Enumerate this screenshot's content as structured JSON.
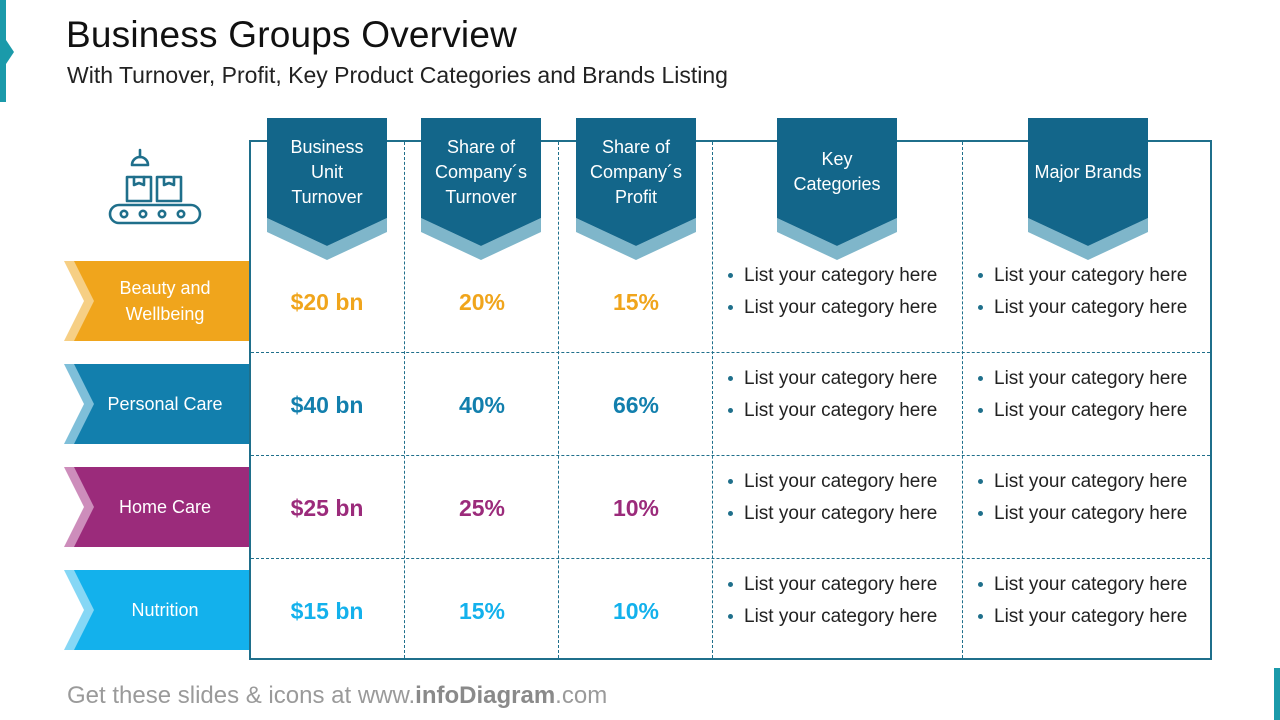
{
  "title": "Business Groups Overview",
  "subtitle": "With Turnover, Profit, Key Product Categories and Brands Listing",
  "icons": {
    "header": "conveyor-boxes-icon"
  },
  "colors": {
    "header_dark": "#13668a",
    "header_light": "#7fb6ca",
    "grid": "#1f6f8b",
    "beauty": "#f0a51c",
    "personal": "#127fad",
    "home": "#9b2b7b",
    "nutrition": "#13b1ec"
  },
  "headers": [
    "Business Unit Turnover",
    "Share of Company´s Turnover",
    "Share of Company´s Profit",
    "Key Categories",
    "Major Brands"
  ],
  "rows": [
    {
      "label": "Beauty and Wellbeing",
      "color": "#f0a51c",
      "light": "#f6cf85",
      "turnover": "$20 bn",
      "share_turnover": "20%",
      "share_profit": "15%",
      "categories": [
        "List your category here",
        "List your category here"
      ],
      "brands": [
        "List your category here",
        "List your category here"
      ]
    },
    {
      "label": "Personal Care",
      "color": "#127fad",
      "light": "#7fbfd9",
      "turnover": "$40 bn",
      "share_turnover": "40%",
      "share_profit": "66%",
      "categories": [
        "List your category here",
        "List your category here"
      ],
      "brands": [
        "List your category here",
        "List your category here"
      ]
    },
    {
      "label": "Home Care",
      "color": "#9b2b7b",
      "light": "#cd8dbb",
      "turnover": "$25 bn",
      "share_turnover": "25%",
      "share_profit": "10%",
      "categories": [
        "List your category here",
        "List your category here"
      ],
      "brands": [
        "List your category here",
        "List your category here"
      ]
    },
    {
      "label": "Nutrition",
      "color": "#13b1ec",
      "light": "#86d7f5",
      "turnover": "$15 bn",
      "share_turnover": "15%",
      "share_profit": "10%",
      "categories": [
        "List your category here",
        "List your category here"
      ],
      "brands": [
        "List your category here",
        "List your category here"
      ]
    }
  ],
  "footer": {
    "prefix": "Get these slides & icons at www.",
    "brand": "infoDiagram",
    "suffix": ".com"
  }
}
